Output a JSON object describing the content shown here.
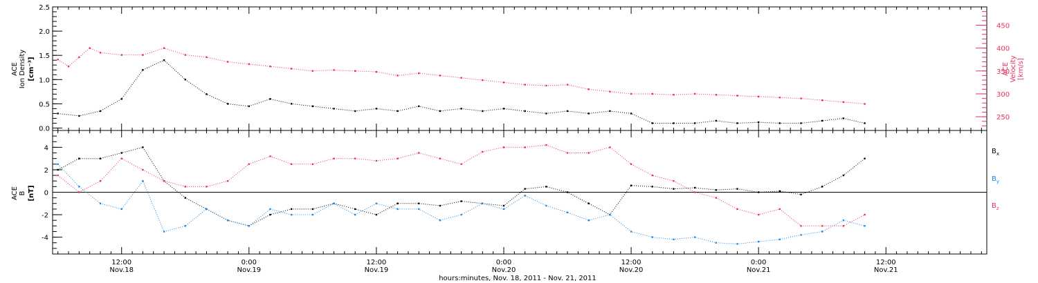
{
  "chart_data": [
    {
      "type": "scatter",
      "panel": "top",
      "ylabel_left_line1": "ACE",
      "ylabel_left_line2": "Ion Density",
      "ylabel_left_units": "[cm⁻³]",
      "ylabel_right_line1": "ACE",
      "ylabel_right_line2": "Velocity",
      "ylabel_right_units": "[km/s]",
      "ylim_left": [
        -0.05,
        2.5
      ],
      "yticks_left": [
        "0.0",
        "0.5",
        "1.0",
        "1.5",
        "2.0",
        "2.5"
      ],
      "ylim_right": [
        220,
        490
      ],
      "yticks_right": [
        "250",
        "300",
        "350",
        "400",
        "450"
      ],
      "series": [
        {
          "name": "Ion Density",
          "color": "#000000",
          "axis": "left",
          "x": [
            6,
            8,
            10,
            12,
            14,
            16,
            18,
            20,
            22,
            24,
            26,
            28,
            30,
            32,
            34,
            36,
            38,
            40,
            42,
            44,
            46,
            48,
            50,
            52,
            54,
            56,
            58,
            60,
            62,
            64,
            66,
            68,
            70,
            72,
            74,
            76,
            78,
            80,
            82
          ],
          "y": [
            0.3,
            0.25,
            0.35,
            0.6,
            1.2,
            1.4,
            1.0,
            0.7,
            0.5,
            0.45,
            0.6,
            0.5,
            0.45,
            0.4,
            0.35,
            0.4,
            0.35,
            0.45,
            0.35,
            0.4,
            0.35,
            0.4,
            0.35,
            0.3,
            0.35,
            0.3,
            0.35,
            0.3,
            0.1,
            0.1,
            0.1,
            0.15,
            0.1,
            0.12,
            0.1,
            0.1,
            0.15,
            0.2,
            0.1
          ]
        },
        {
          "name": "Velocity",
          "color": "#e8305e",
          "axis": "right",
          "x": [
            6,
            7,
            8,
            9,
            10,
            12,
            14,
            16,
            18,
            20,
            22,
            24,
            26,
            28,
            30,
            32,
            34,
            36,
            38,
            40,
            42,
            44,
            46,
            48,
            50,
            52,
            54,
            56,
            58,
            60,
            62,
            64,
            66,
            68,
            70,
            72,
            74,
            76,
            78,
            80,
            82
          ],
          "y": [
            375,
            360,
            380,
            400,
            390,
            385,
            385,
            400,
            385,
            380,
            370,
            365,
            360,
            355,
            350,
            352,
            350,
            348,
            340,
            345,
            340,
            335,
            330,
            325,
            320,
            318,
            320,
            310,
            305,
            300,
            300,
            298,
            300,
            298,
            296,
            294,
            292,
            290,
            286,
            282,
            278
          ]
        }
      ]
    },
    {
      "type": "scatter",
      "panel": "bottom",
      "ylabel_line1": "ACE",
      "ylabel_line2": "B",
      "ylabel_units": "[nT]",
      "ylim": [
        -5.5,
        5.5
      ],
      "yticks": [
        "-4",
        "-2",
        "0",
        "2",
        "4"
      ],
      "legend_position": "right",
      "series": [
        {
          "name": "Bx",
          "color": "#000000",
          "x": [
            6,
            8,
            10,
            12,
            14,
            16,
            18,
            20,
            22,
            24,
            26,
            28,
            30,
            32,
            34,
            36,
            38,
            40,
            42,
            44,
            46,
            48,
            50,
            52,
            54,
            56,
            58,
            60,
            62,
            64,
            66,
            68,
            70,
            72,
            74,
            76,
            78,
            80,
            82
          ],
          "y": [
            2,
            3,
            3,
            3.5,
            4,
            1,
            -0.5,
            -1.5,
            -2.5,
            -3,
            -2,
            -1.5,
            -1.5,
            -1,
            -1.5,
            -2,
            -1,
            -1,
            -1.2,
            -0.8,
            -1,
            -1.2,
            0.3,
            0.5,
            0,
            -1,
            -2,
            0.6,
            0.5,
            0.3,
            0.4,
            0.2,
            0.3,
            0,
            0.1,
            -0.2,
            0.5,
            1.5,
            3
          ]
        },
        {
          "name": "By",
          "color": "#1e88e5",
          "x": [
            6,
            8,
            10,
            12,
            14,
            16,
            18,
            20,
            22,
            24,
            26,
            28,
            30,
            32,
            34,
            36,
            38,
            40,
            42,
            44,
            46,
            48,
            50,
            52,
            54,
            56,
            58,
            60,
            62,
            64,
            66,
            68,
            70,
            72,
            74,
            76,
            78,
            80,
            82
          ],
          "y": [
            2.5,
            0.5,
            -1,
            -1.5,
            1,
            -3.5,
            -3,
            -1.5,
            -2.5,
            -3,
            -1.5,
            -2,
            -2,
            -1,
            -2,
            -1,
            -1.5,
            -1.5,
            -2.5,
            -2,
            -1,
            -1.5,
            -0.3,
            -1.2,
            -1.8,
            -2.5,
            -2,
            -3.5,
            -4,
            -4.2,
            -4,
            -4.5,
            -4.6,
            -4.4,
            -4.2,
            -3.8,
            -3.5,
            -2.5,
            -3
          ]
        },
        {
          "name": "Bz",
          "color": "#e8305e",
          "x": [
            6,
            8,
            10,
            12,
            14,
            16,
            18,
            20,
            22,
            24,
            26,
            28,
            30,
            32,
            34,
            36,
            38,
            40,
            42,
            44,
            46,
            48,
            50,
            52,
            54,
            56,
            58,
            60,
            62,
            64,
            66,
            68,
            70,
            72,
            74,
            76,
            78,
            80,
            82
          ],
          "y": [
            1.5,
            0,
            1,
            3,
            2,
            1,
            0.5,
            0.5,
            1,
            2.5,
            3.2,
            2.5,
            2.5,
            3,
            3,
            2.8,
            3,
            3.5,
            3,
            2.5,
            3.6,
            4,
            4,
            4.2,
            3.5,
            3.5,
            4,
            2.5,
            1.5,
            1,
            0,
            -0.5,
            -1.5,
            -2,
            -1.5,
            -3,
            -3,
            -3,
            -2
          ]
        }
      ]
    }
  ],
  "x_axis": {
    "xlim_hours": [
      5.5,
      93.5
    ],
    "tick_labels": [
      {
        "hours": 12,
        "time": "12:00",
        "date": "Nov.18"
      },
      {
        "hours": 24,
        "time": "0:00",
        "date": "Nov.19"
      },
      {
        "hours": 36,
        "time": "12:00",
        "date": "Nov.19"
      },
      {
        "hours": 48,
        "time": "0:00",
        "date": "Nov.20"
      },
      {
        "hours": 60,
        "time": "12:00",
        "date": "Nov.20"
      },
      {
        "hours": 72,
        "time": "0:00",
        "date": "Nov.21"
      },
      {
        "hours": 84,
        "time": "12:00",
        "date": "Nov.21"
      }
    ],
    "title": "hours:minutes, Nov. 18, 2011 - Nov. 21, 2011"
  },
  "legend": [
    {
      "main": "B",
      "sub": "x",
      "color": "#000000"
    },
    {
      "main": "B",
      "sub": "y",
      "color": "#1e88e5"
    },
    {
      "main": "B",
      "sub": "z",
      "color": "#e8305e"
    }
  ]
}
